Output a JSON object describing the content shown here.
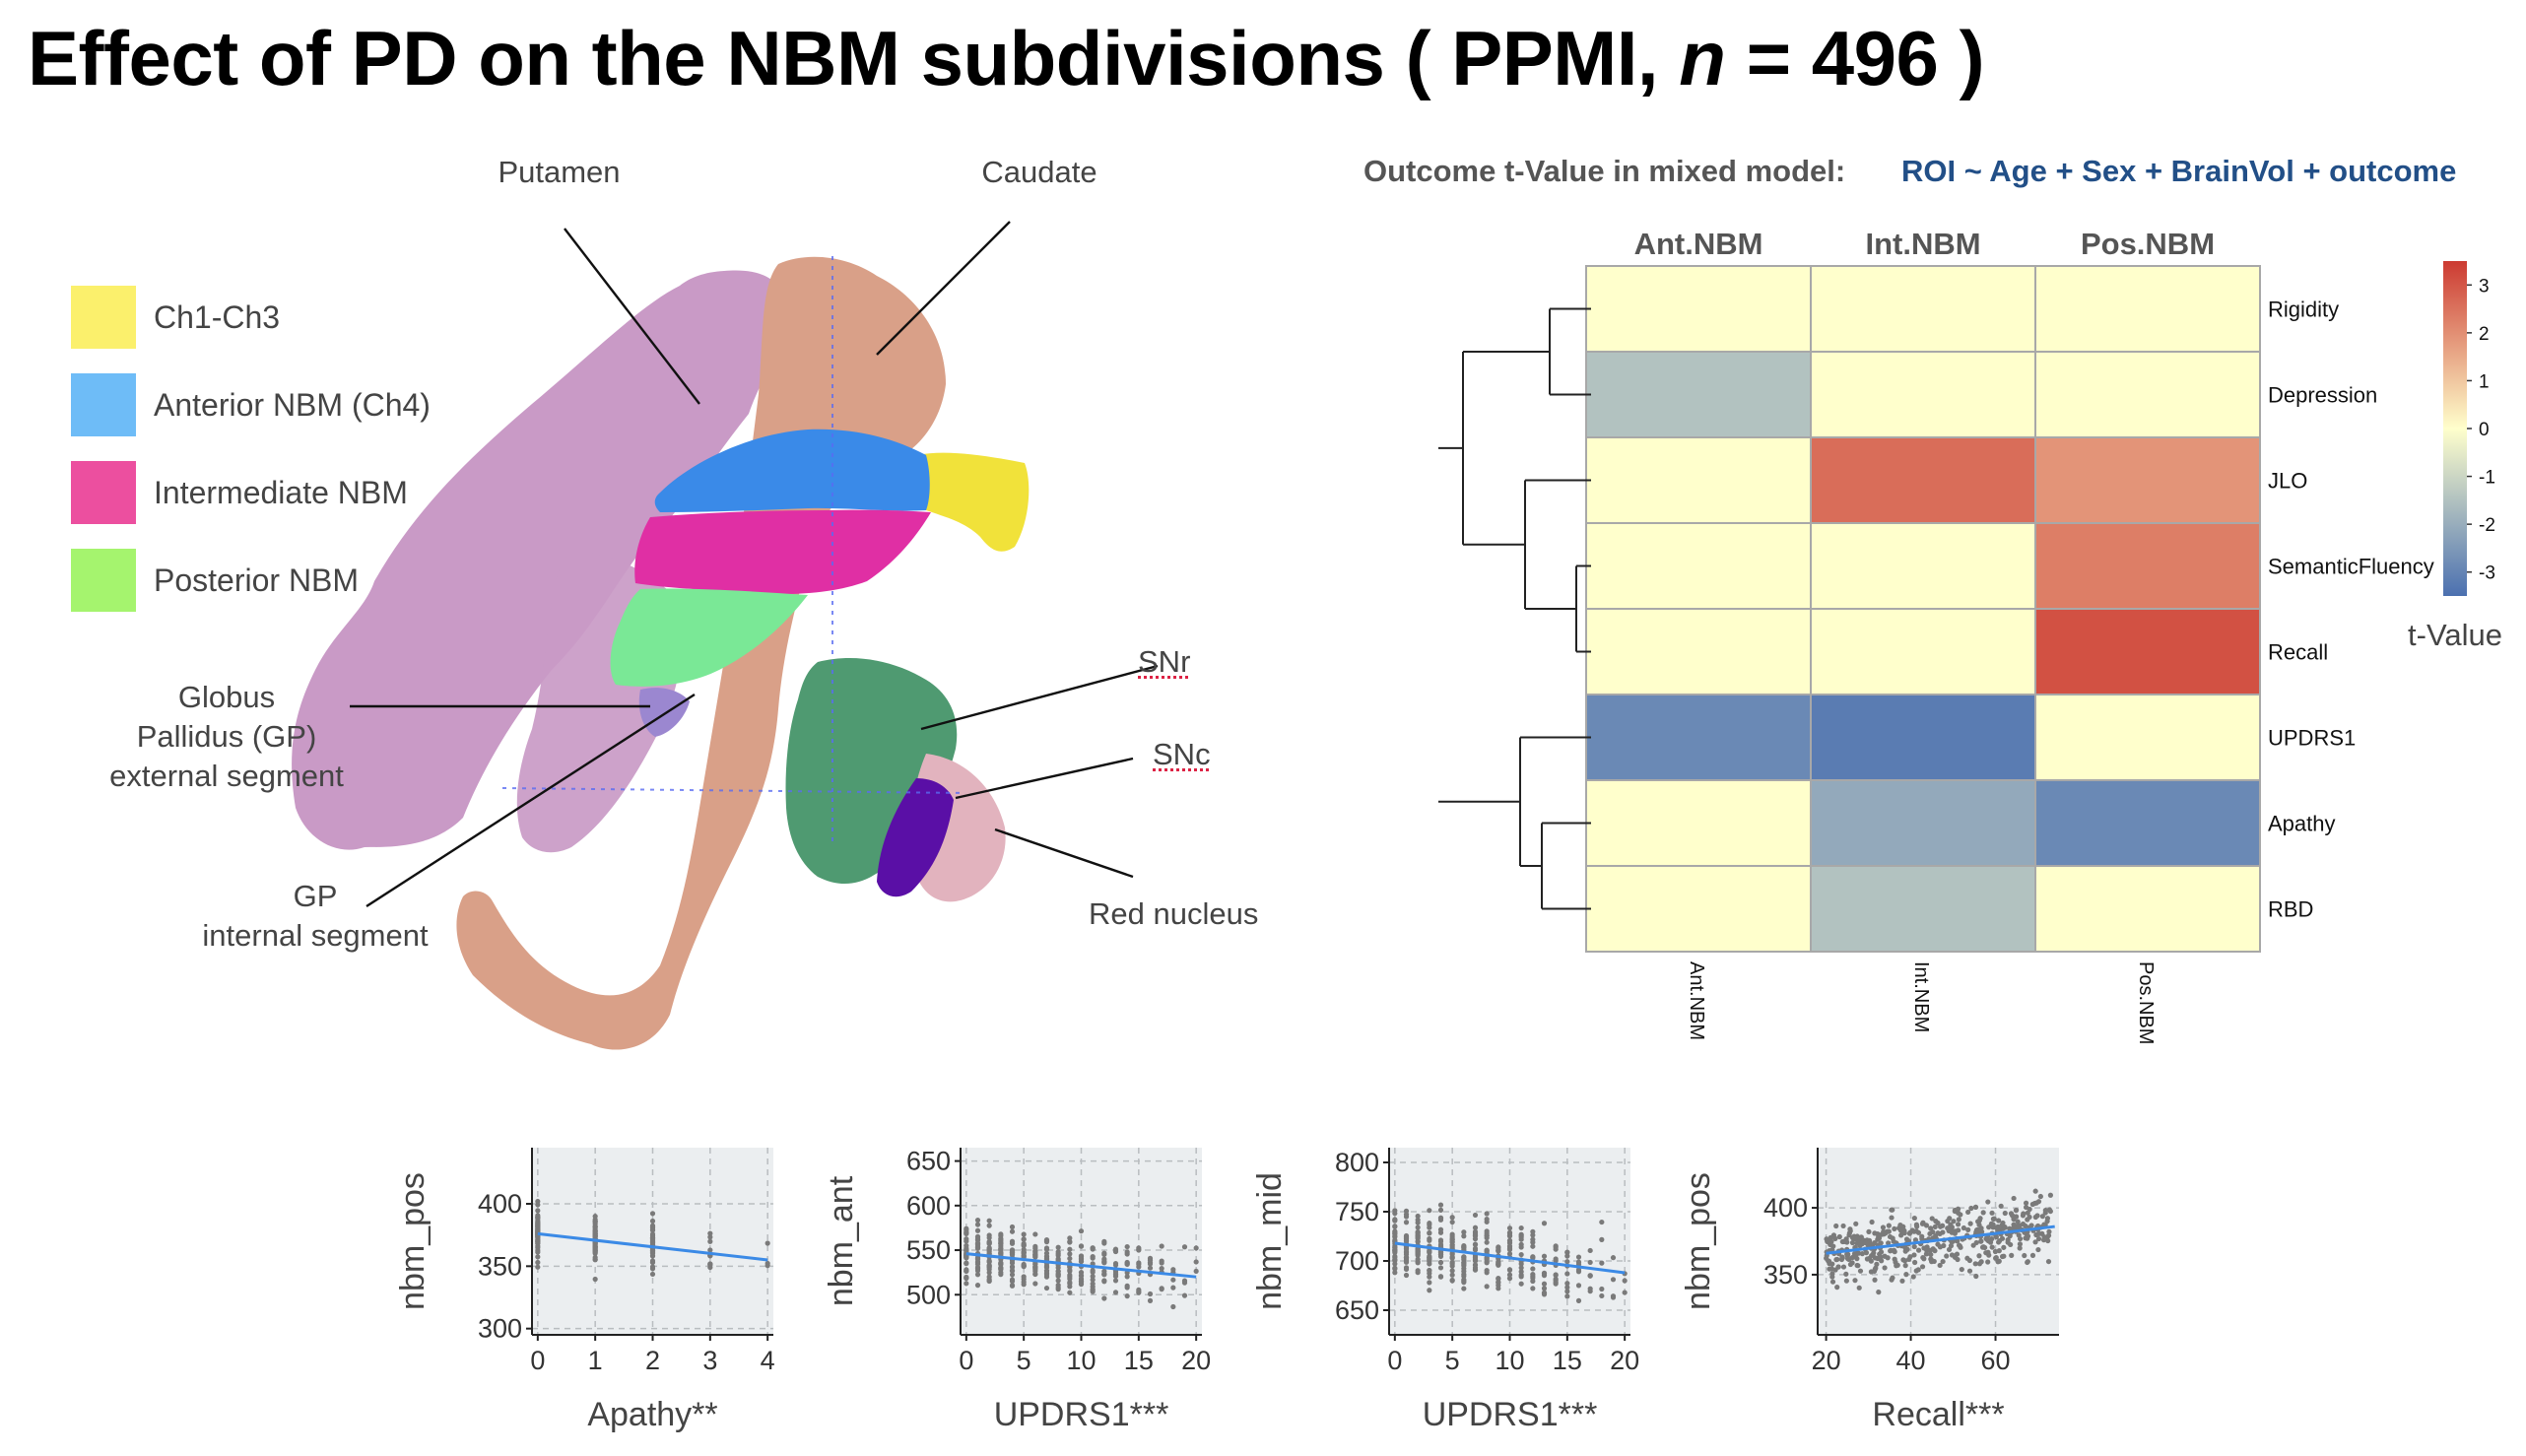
{
  "title": {
    "prefix": "Effect of PD on the NBM subdivisions ( PPMI,  ",
    "n_symbol": "n",
    "suffix": " = 496 )"
  },
  "anatomy": {
    "labels": {
      "putamen": "Putamen",
      "caudate": "Caudate",
      "gp_external": [
        "Globus",
        "Pallidus (GP)",
        "external segment"
      ],
      "gp_internal": [
        "GP",
        "internal segment"
      ],
      "snr": "SNr",
      "snc": "SNc",
      "red_nucleus": "Red nucleus"
    },
    "legend": [
      {
        "label": "Ch1-Ch3",
        "color": "#fbf06c"
      },
      {
        "label": "Anterior NBM (Ch4)",
        "color": "#6ebcf7"
      },
      {
        "label": "Intermediate NBM",
        "color": "#ec4f9f"
      },
      {
        "label": "Posterior NBM",
        "color": "#a5f46e"
      }
    ],
    "colors": {
      "putamen": "#c99ac6",
      "caudate": "#d9a088",
      "ch1ch3": "#f1e23a",
      "ant": "#3a8ae8",
      "int": "#e02fa4",
      "pos": "#7ae896",
      "snr": "#4f9a71",
      "snc": "#5a0fa6",
      "red_nucleus": "#e2b3be",
      "gp": "#9b87d0"
    }
  },
  "heatmap_header": {
    "title": "Outcome t-Value in mixed model:",
    "model": "ROI ~ Age + Sex + BrainVol + outcome"
  },
  "chart_data": [
    {
      "type": "heatmap",
      "title": "Outcome t-Value in mixed model:  ROI ~ Age + Sex + BrainVol + outcome",
      "columns": [
        "Ant.NBM",
        "Int.NBM",
        "Pos.NBM"
      ],
      "rows": [
        "Rigidity",
        "Depression",
        "JLO",
        "SemanticFluency",
        "Recall",
        "UPDRS1",
        "Apathy",
        "RBD"
      ],
      "values": [
        [
          0,
          0,
          0
        ],
        [
          -1.5,
          0,
          0
        ],
        [
          0,
          2.6,
          1.9
        ],
        [
          0,
          0,
          2.3
        ],
        [
          0,
          0,
          3.1
        ],
        [
          -2.9,
          -3.2,
          0
        ],
        [
          0,
          -2.1,
          -2.9
        ],
        [
          0,
          -1.5,
          0
        ]
      ],
      "colorbar": {
        "label": "t-Value",
        "ticks": [
          3,
          2,
          1,
          0,
          -1,
          -2,
          -3
        ],
        "range": [
          -3.5,
          3.5
        ],
        "low_color": "#4b70b0",
        "mid_color": "#ffffcc",
        "high_color": "#cc3a31"
      },
      "row_dendrogram": true
    },
    {
      "type": "scatter",
      "xlabel": "Apathy**",
      "ylabel": "nbm_pos",
      "xlim": [
        -0.1,
        4.1
      ],
      "ylim": [
        295,
        445
      ],
      "xticks": [
        0,
        1,
        2,
        3,
        4
      ],
      "yticks": [
        300,
        350,
        400
      ],
      "fit": {
        "x": [
          0,
          4
        ],
        "y": [
          376,
          355
        ]
      },
      "grid": true
    },
    {
      "type": "scatter",
      "xlabel": "UPDRS1***",
      "ylabel": "nbm_ant",
      "xlim": [
        -0.5,
        20.5
      ],
      "ylim": [
        455,
        665
      ],
      "xticks": [
        0,
        5,
        10,
        15,
        20
      ],
      "yticks": [
        500,
        550,
        600,
        650
      ],
      "fit": {
        "x": [
          0,
          20
        ],
        "y": [
          546,
          520
        ]
      },
      "grid": true
    },
    {
      "type": "scatter",
      "xlabel": "UPDRS1***",
      "ylabel": "nbm_mid",
      "xlim": [
        -0.5,
        20.5
      ],
      "ylim": [
        625,
        815
      ],
      "xticks": [
        0,
        5,
        10,
        15,
        20
      ],
      "yticks": [
        650,
        700,
        750,
        800
      ],
      "fit": {
        "x": [
          0,
          20
        ],
        "y": [
          718,
          688
        ]
      },
      "grid": true
    },
    {
      "type": "scatter",
      "xlabel": "Recall***",
      "ylabel": "nbm_pos",
      "xlim": [
        18,
        75
      ],
      "ylim": [
        305,
        445
      ],
      "xticks": [
        20,
        40,
        60
      ],
      "yticks": [
        350,
        400
      ],
      "fit": {
        "x": [
          20,
          74
        ],
        "y": [
          366,
          386
        ]
      },
      "grid": true
    }
  ]
}
